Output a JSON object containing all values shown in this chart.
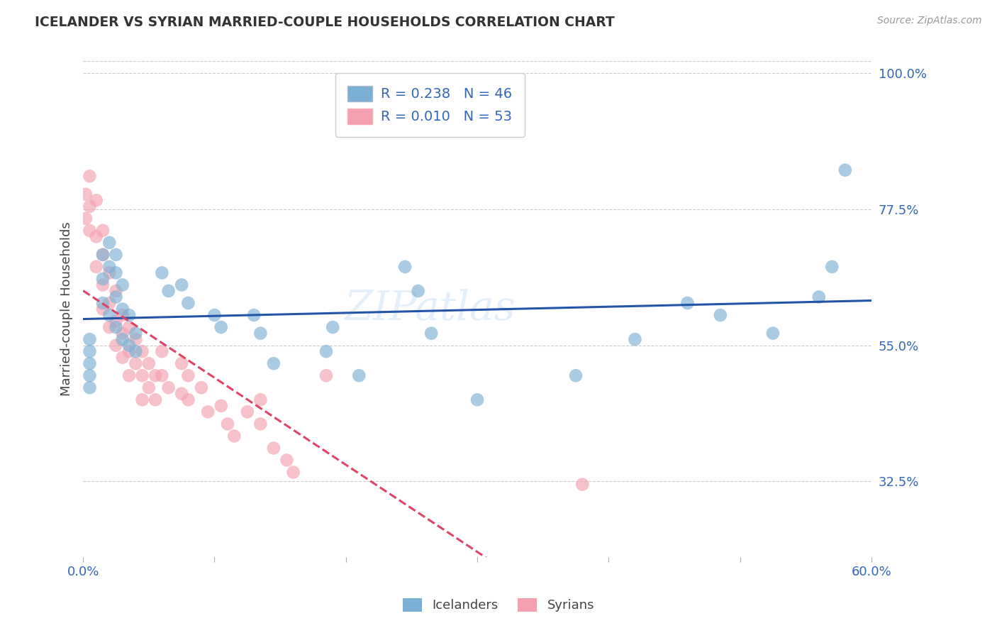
{
  "title": "ICELANDER VS SYRIAN MARRIED-COUPLE HOUSEHOLDS CORRELATION CHART",
  "source": "Source: ZipAtlas.com",
  "ylabel": "Married-couple Households",
  "xlim": [
    0.0,
    0.6
  ],
  "ylim": [
    0.2,
    1.02
  ],
  "yticks_right": [
    1.0,
    0.775,
    0.55,
    0.325
  ],
  "yticklabels_right": [
    "100.0%",
    "77.5%",
    "55.0%",
    "32.5%"
  ],
  "blue_color": "#7BAFD4",
  "pink_color": "#F4A0B0",
  "blue_line_color": "#2255AA",
  "pink_line_color": "#DD4466",
  "background_color": "#FFFFFF",
  "grid_color": "#CCCCCC",
  "icelander_x": [
    0.005,
    0.005,
    0.005,
    0.005,
    0.005,
    0.015,
    0.015,
    0.015,
    0.02,
    0.02,
    0.02,
    0.025,
    0.025,
    0.025,
    0.025,
    0.03,
    0.03,
    0.03,
    0.035,
    0.035,
    0.04,
    0.04,
    0.06,
    0.065,
    0.075,
    0.08,
    0.1,
    0.105,
    0.13,
    0.135,
    0.145,
    0.185,
    0.19,
    0.21,
    0.265,
    0.3,
    0.375,
    0.42,
    0.46,
    0.485,
    0.525,
    0.56,
    0.57,
    0.58,
    0.245,
    0.255
  ],
  "icelander_y": [
    0.54,
    0.56,
    0.52,
    0.5,
    0.48,
    0.7,
    0.66,
    0.62,
    0.72,
    0.68,
    0.6,
    0.7,
    0.67,
    0.63,
    0.58,
    0.65,
    0.61,
    0.56,
    0.6,
    0.55,
    0.57,
    0.54,
    0.67,
    0.64,
    0.65,
    0.62,
    0.6,
    0.58,
    0.6,
    0.57,
    0.52,
    0.54,
    0.58,
    0.5,
    0.57,
    0.46,
    0.5,
    0.56,
    0.62,
    0.6,
    0.57,
    0.63,
    0.68,
    0.84,
    0.68,
    0.64
  ],
  "syrian_x": [
    0.002,
    0.002,
    0.005,
    0.005,
    0.005,
    0.01,
    0.01,
    0.01,
    0.015,
    0.015,
    0.015,
    0.015,
    0.02,
    0.02,
    0.02,
    0.025,
    0.025,
    0.025,
    0.03,
    0.03,
    0.03,
    0.035,
    0.035,
    0.035,
    0.04,
    0.04,
    0.045,
    0.045,
    0.045,
    0.05,
    0.05,
    0.055,
    0.055,
    0.06,
    0.06,
    0.065,
    0.075,
    0.075,
    0.08,
    0.08,
    0.09,
    0.095,
    0.105,
    0.11,
    0.115,
    0.125,
    0.135,
    0.135,
    0.145,
    0.155,
    0.16,
    0.185,
    0.38
  ],
  "syrian_y": [
    0.8,
    0.76,
    0.83,
    0.78,
    0.74,
    0.79,
    0.73,
    0.68,
    0.74,
    0.7,
    0.65,
    0.61,
    0.67,
    0.62,
    0.58,
    0.64,
    0.59,
    0.55,
    0.6,
    0.57,
    0.53,
    0.58,
    0.54,
    0.5,
    0.56,
    0.52,
    0.54,
    0.5,
    0.46,
    0.52,
    0.48,
    0.5,
    0.46,
    0.54,
    0.5,
    0.48,
    0.52,
    0.47,
    0.5,
    0.46,
    0.48,
    0.44,
    0.45,
    0.42,
    0.4,
    0.44,
    0.46,
    0.42,
    0.38,
    0.36,
    0.34,
    0.5,
    0.32
  ],
  "watermark": "ZIPatlas",
  "figsize": [
    14.06,
    8.92
  ],
  "dpi": 100
}
